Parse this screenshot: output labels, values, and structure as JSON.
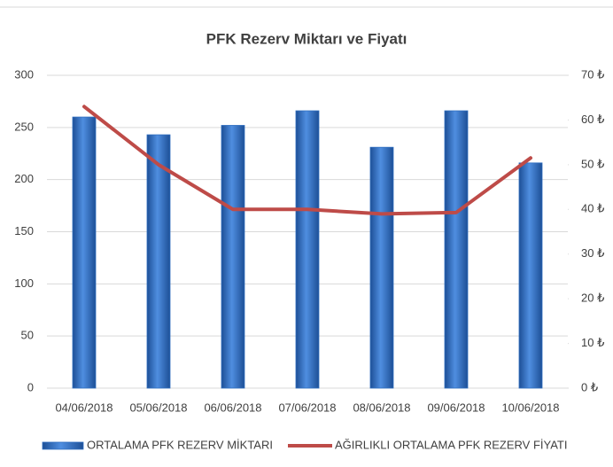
{
  "chart_data": {
    "type": "bar",
    "title": "PFK Rezerv Miktarı ve Fiyatı",
    "categories": [
      "04/06/2018",
      "05/06/2018",
      "06/06/2018",
      "07/06/2018",
      "08/06/2018",
      "09/06/2018",
      "10/06/2018"
    ],
    "series": [
      {
        "name": "ORTALAMA PFK REZERV MİKTARI",
        "type": "bar",
        "color": "#2f6ec0",
        "values": [
          260,
          243,
          252,
          266,
          231,
          266,
          216
        ]
      },
      {
        "name": "AĞIRLIKLI ORTALAMA PFK REZERV FİYATI",
        "type": "line",
        "axis": "y2",
        "color": "#be4b48",
        "values": [
          63,
          50,
          40,
          40,
          39,
          39.3,
          51.5
        ]
      }
    ],
    "ylim": [
      0,
      300
    ],
    "yticks": [
      0,
      50,
      100,
      150,
      200,
      250,
      300
    ],
    "y2lim": [
      0,
      70
    ],
    "y2ticks": [
      {
        "value": 0,
        "label": "0 ₺"
      },
      {
        "value": 10,
        "label": "10 ₺"
      },
      {
        "value": 20,
        "label": "20 ₺"
      },
      {
        "value": 30,
        "label": "30 ₺"
      },
      {
        "value": 40,
        "label": "40 ₺"
      },
      {
        "value": 50,
        "label": "50 ₺"
      },
      {
        "value": 60,
        "label": "60 ₺"
      },
      {
        "value": 70,
        "label": "70 ₺"
      }
    ],
    "grid": true,
    "legend": "bottom"
  }
}
